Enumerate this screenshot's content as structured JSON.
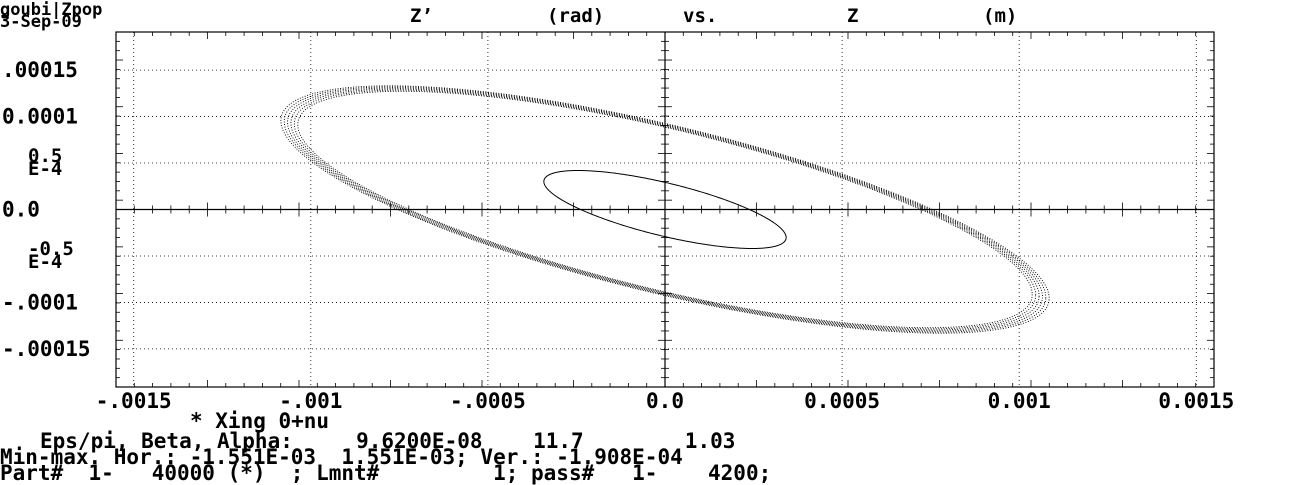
{
  "header": {
    "program": "goubi|Zpop",
    "date": "3-Sep-09",
    "title_parts": [
      "Z’",
      "(rad)",
      "vs.",
      "Z",
      "(m)"
    ]
  },
  "chart_data": {
    "type": "scatter",
    "title": "Z’ (rad) vs. Z (m)",
    "xlabel": "Z (m)",
    "ylabel": "Z’ (rad)",
    "xlim": [
      -0.00155,
      0.00155
    ],
    "ylim": [
      -0.000191,
      0.000191
    ],
    "grid": true,
    "x_ticks": [
      -0.0015,
      -0.001,
      -0.0005,
      0.0,
      0.0005,
      0.001,
      0.0015
    ],
    "x_tick_labels": [
      "-.0015",
      "-.001",
      "-.0005",
      "0.0",
      "0.0005",
      "0.001",
      "0.0015"
    ],
    "y_ticks": [
      0.00015,
      0.0001,
      5e-05,
      0.0,
      -5e-05,
      -0.0001,
      -0.00015
    ],
    "y_tick_labels": [
      ".00015",
      "0.0001",
      "0.5\nE-4",
      "0.0",
      "-0.5\nE-4",
      "-.0001",
      "-.00015"
    ],
    "series": [
      {
        "kind": "inner_ellipse",
        "beta": 11.7,
        "alpha": 1.03,
        "emittance": 1e-08
      },
      {
        "kind": "outer_band",
        "beta": 11.7,
        "alpha": 1.03,
        "emittance": 9.62e-08
      }
    ]
  },
  "footer": {
    "line1": "* Xing 0+nu",
    "line2": "Eps/pi, Beta, Alpha:     9.6200E-08    11.7        1.03",
    "line3": "Min-max. Hor.: -1.551E-03  1.551E-03; Ver.: -1.908E-04",
    "line4": "Part#  1-   40000 (*)  ; Lmnt#         1; pass#   1-    4200;"
  }
}
